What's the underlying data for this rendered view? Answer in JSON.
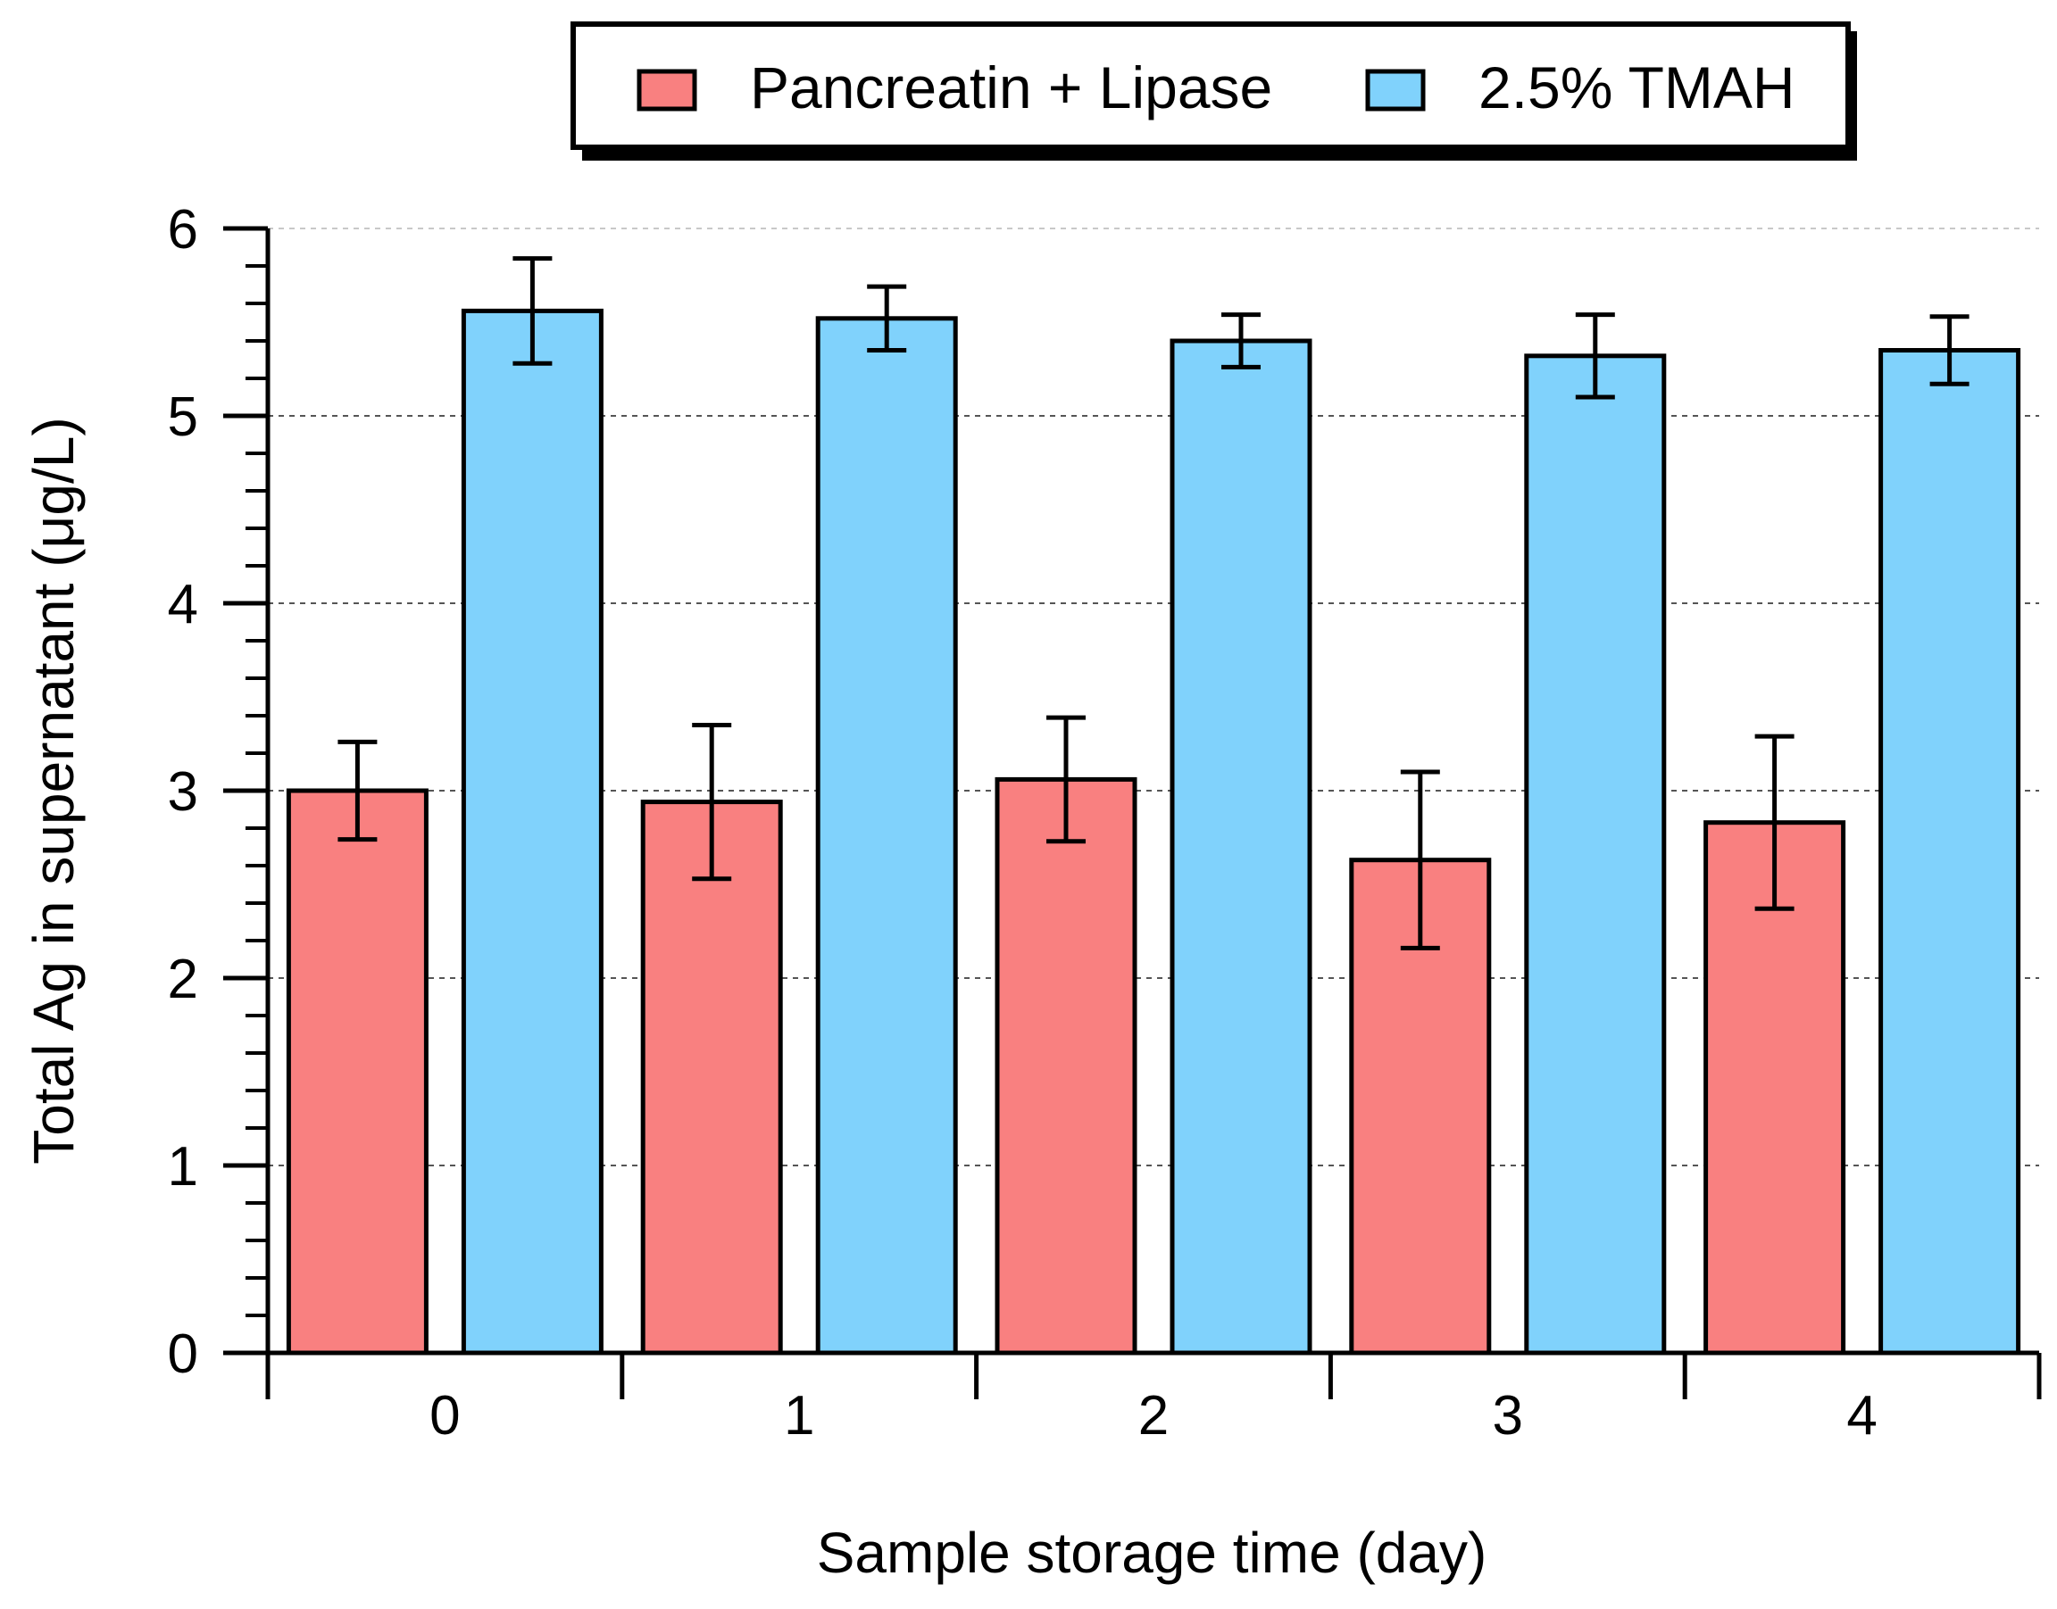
{
  "chart_data": {
    "type": "bar",
    "title": "",
    "xlabel": "Sample storage time (day)",
    "ylabel": "Total Ag in supernatant (μg/L)",
    "categories": [
      "0",
      "1",
      "2",
      "3",
      "4"
    ],
    "ylim": [
      0,
      6
    ],
    "yticks": [
      "0",
      "1",
      "2",
      "3",
      "4",
      "5",
      "6"
    ],
    "grid": "horizontal dashed",
    "legend_position": "top",
    "series": [
      {
        "name": "Pancreatin + Lipase",
        "color": "#f98080",
        "values": [
          3.0,
          2.94,
          3.06,
          2.63,
          2.83
        ],
        "errors": [
          0.26,
          0.41,
          0.33,
          0.47,
          0.46
        ]
      },
      {
        "name": "2.5% TMAH",
        "color": "#80d2fc",
        "values": [
          5.56,
          5.52,
          5.4,
          5.32,
          5.35
        ],
        "errors": [
          0.28,
          0.17,
          0.14,
          0.22,
          0.18
        ]
      }
    ]
  }
}
